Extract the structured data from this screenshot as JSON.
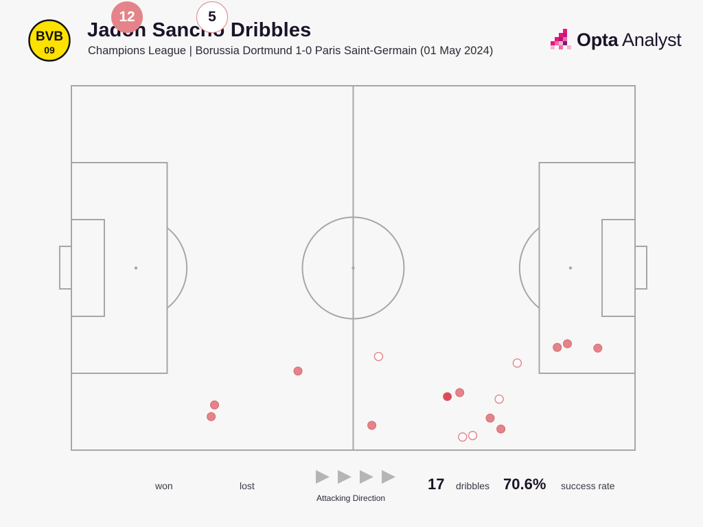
{
  "header": {
    "title": "Jadon Sancho Dribbles",
    "subtitle": "Champions League | Borussia Dortmund 1-0 Paris Saint-Germain (01 May 2024)",
    "crest_top": "BVB",
    "crest_bottom": "09",
    "brand_bold": "Opta",
    "brand_light": " Analyst"
  },
  "colors": {
    "won": "#e48389",
    "won_highlight": "#dc4a56",
    "lost_stroke": "#e48389",
    "pitch_lines": "#a6a6a6",
    "crest_yellow": "#fde100",
    "crest_black": "#111111"
  },
  "legend": {
    "won_count": "12",
    "won_label": "won",
    "lost_count": "5",
    "lost_label": "lost",
    "direction_label": "Attacking Direction",
    "dribbles_count": "17",
    "dribbles_label": "dribbles",
    "success_value": "70.6%",
    "success_label": "success rate"
  },
  "chart_data": {
    "type": "scatter",
    "x_range": [
      0,
      100
    ],
    "y_range": [
      0,
      100
    ],
    "series": [
      {
        "name": "won",
        "points": [
          {
            "x": 40.2,
            "y": 21.7
          },
          {
            "x": 25.4,
            "y": 12.4
          },
          {
            "x": 24.8,
            "y": 9.2
          },
          {
            "x": 53.3,
            "y": 6.8
          },
          {
            "x": 66.7,
            "y": 14.7,
            "highlight": true
          },
          {
            "x": 68.9,
            "y": 15.8
          },
          {
            "x": 74.3,
            "y": 8.8
          },
          {
            "x": 76.2,
            "y": 5.8
          },
          {
            "x": 86.2,
            "y": 28.2
          },
          {
            "x": 88.0,
            "y": 29.2
          },
          {
            "x": 93.4,
            "y": 28.0
          },
          {
            "x": 66.7,
            "y": 14.7
          }
        ]
      },
      {
        "name": "lost",
        "points": [
          {
            "x": 54.5,
            "y": 25.7
          },
          {
            "x": 79.1,
            "y": 23.9
          },
          {
            "x": 75.9,
            "y": 14.0
          },
          {
            "x": 69.4,
            "y": 3.6
          },
          {
            "x": 71.2,
            "y": 4.0
          }
        ]
      }
    ]
  }
}
